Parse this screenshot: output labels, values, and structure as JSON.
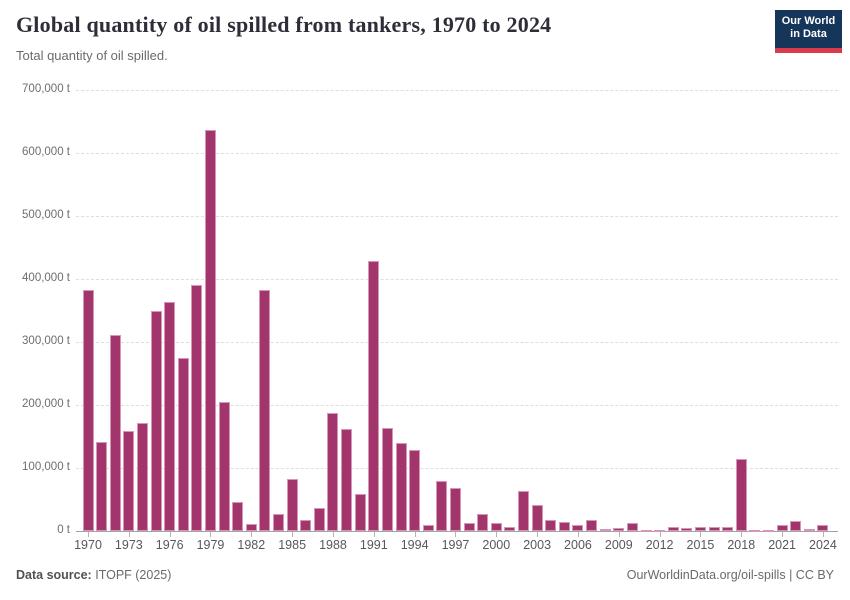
{
  "header": {
    "logo": {
      "line1": "Our World",
      "line2": "in Data"
    }
  },
  "chart_data": {
    "type": "bar",
    "title": "Global quantity of oil spilled from tankers, 1970 to 2024",
    "subtitle": "Total quantity of oil spilled.",
    "unit": "t",
    "ylabel": "",
    "xlabel": "",
    "ylim": [
      0,
      700000
    ],
    "y_tick_interval": 100000,
    "y_tick_suffix": " t",
    "x_tick_years": [
      1970,
      1973,
      1976,
      1979,
      1982,
      1985,
      1988,
      1991,
      1994,
      1997,
      2000,
      2003,
      2006,
      2009,
      2012,
      2015,
      2018,
      2021,
      2024
    ],
    "grid": "horizontal-dashed",
    "legend": "none",
    "bar_color": "#a3356d",
    "years": [
      1970,
      1971,
      1972,
      1973,
      1974,
      1975,
      1976,
      1977,
      1978,
      1979,
      1980,
      1981,
      1982,
      1983,
      1984,
      1985,
      1986,
      1987,
      1988,
      1989,
      1990,
      1991,
      1992,
      1993,
      1994,
      1995,
      1996,
      1997,
      1998,
      1999,
      2000,
      2001,
      2002,
      2003,
      2004,
      2005,
      2006,
      2007,
      2008,
      2009,
      2010,
      2011,
      2012,
      2013,
      2014,
      2015,
      2016,
      2017,
      2018,
      2019,
      2020,
      2021,
      2022,
      2023,
      2024
    ],
    "values_tonnes": [
      383000,
      142000,
      311000,
      158000,
      172000,
      350000,
      363000,
      274000,
      391000,
      636000,
      205000,
      46000,
      11000,
      382000,
      27000,
      83000,
      18000,
      36000,
      187000,
      162000,
      59000,
      429000,
      164000,
      139000,
      128000,
      10000,
      79000,
      69000,
      12000,
      27000,
      13000,
      7000,
      64000,
      42000,
      17000,
      15000,
      10000,
      17000,
      3000,
      5000,
      12000,
      2000,
      1000,
      6000,
      4000,
      6000,
      6000,
      6000,
      114000,
      1000,
      1000,
      10000,
      16000,
      3000,
      10000
    ]
  },
  "footer": {
    "source_label": "Data source:",
    "source_value": "ITOPF (2025)",
    "link": "OurWorldinData.org/oil-spills",
    "license": " | CC BY"
  },
  "colors": {
    "bar": "#a3356d",
    "bar_border": "#d795b7",
    "logo_bg": "#16355a",
    "logo_accent": "#d93a4d"
  }
}
